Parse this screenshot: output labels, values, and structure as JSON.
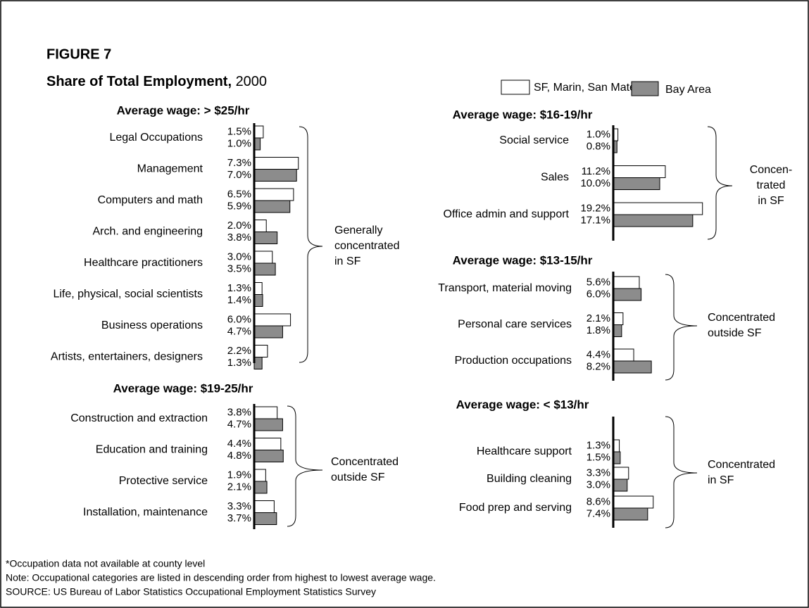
{
  "figure_label": "FIGURE 7",
  "title": "Share of Total Employment,",
  "title_year": "2000",
  "notes": [
    "*Occupation data not available at county level",
    "Note: Occupational categories are listed in descending order from highest to lowest average wage.",
    "SOURCE: US Bureau of Labor Statistics Occupational Employment Statistics Survey"
  ],
  "chart_data": [
    {
      "type": "bar",
      "orientation": "horizontal",
      "title": "Average wage: > $25/hr",
      "categories": [
        "Legal Occupations",
        "Management",
        "Computers and math",
        "Arch. and engineering",
        "Healthcare practitioners",
        "Life, physical, social scientists",
        "Business operations",
        "Artists, entertainers, designers"
      ],
      "series": [
        {
          "name": "SF, Marin, San Mateo*",
          "color": "#ffffff",
          "values": [
            1.5,
            7.3,
            6.5,
            2.0,
            3.0,
            1.3,
            6.0,
            2.2
          ],
          "value_labels": [
            "1.5%",
            "7.3%",
            "6.5%",
            "2.0%",
            "3.0%",
            "1.3%",
            "6.0%",
            "2.2%"
          ]
        },
        {
          "name": "Bay Area",
          "color": "#8c8c8c",
          "values": [
            1.0,
            7.0,
            5.9,
            3.8,
            3.5,
            1.4,
            4.7,
            1.3
          ],
          "value_labels": [
            "1.0%",
            "7.0%",
            "5.9%",
            "3.8%",
            "3.5%",
            "1.4%",
            "4.7%",
            "1.3%"
          ]
        }
      ],
      "xlim": [
        0,
        10
      ],
      "annotation": [
        "Generally",
        "concentrated",
        "in SF"
      ]
    },
    {
      "type": "bar",
      "orientation": "horizontal",
      "title": "Average wage: $19-25/hr",
      "categories": [
        "Construction and extraction",
        "Education and training",
        "Protective service",
        "Installation, maintenance"
      ],
      "series": [
        {
          "name": "SF, Marin, San Mateo*",
          "color": "#ffffff",
          "values": [
            3.8,
            4.4,
            1.9,
            3.3
          ],
          "value_labels": [
            "3.8%",
            "4.4%",
            "1.9%",
            "3.3%"
          ]
        },
        {
          "name": "Bay Area",
          "color": "#8c8c8c",
          "values": [
            4.7,
            4.8,
            2.1,
            3.7
          ],
          "value_labels": [
            "4.7%",
            "4.8%",
            "2.1%",
            "3.7%"
          ]
        }
      ],
      "xlim": [
        0,
        10
      ],
      "annotation": [
        "Concentrated",
        "outside SF"
      ]
    },
    {
      "type": "bar",
      "orientation": "horizontal",
      "title": "Average wage: $16-19/hr",
      "categories": [
        "Social service",
        "Sales",
        "Office admin and support"
      ],
      "series": [
        {
          "name": "SF, Marin, San Mateo*",
          "color": "#ffffff",
          "values": [
            1.0,
            11.2,
            19.2
          ],
          "value_labels": [
            "1.0%",
            "11.2%",
            "19.2%"
          ]
        },
        {
          "name": "Bay Area",
          "color": "#8c8c8c",
          "values": [
            0.8,
            10.0,
            17.1
          ],
          "value_labels": [
            "0.8%",
            "10.0%",
            "17.1%"
          ]
        }
      ],
      "xlim": [
        0,
        20
      ],
      "annotation": [
        "Concen-",
        "trated",
        "in SF"
      ]
    },
    {
      "type": "bar",
      "orientation": "horizontal",
      "title": "Average wage: $13-15/hr",
      "categories": [
        "Transport, material moving",
        "Personal care services",
        "Production occupations"
      ],
      "series": [
        {
          "name": "SF, Marin, San Mateo*",
          "color": "#ffffff",
          "values": [
            5.6,
            2.1,
            4.4
          ],
          "value_labels": [
            "5.6%",
            "2.1%",
            "4.4%"
          ]
        },
        {
          "name": "Bay Area",
          "color": "#8c8c8c",
          "values": [
            6.0,
            1.8,
            8.2
          ],
          "value_labels": [
            "6.0%",
            "1.8%",
            "8.2%"
          ]
        }
      ],
      "xlim": [
        0,
        20
      ],
      "annotation": [
        "Concentrated",
        "outside SF"
      ]
    },
    {
      "type": "bar",
      "orientation": "horizontal",
      "title": "Average wage: < $13/hr",
      "categories": [
        "Healthcare support",
        "Building cleaning",
        "Food prep and serving"
      ],
      "series": [
        {
          "name": "SF, Marin, San Mateo*",
          "color": "#ffffff",
          "values": [
            1.3,
            3.3,
            8.6
          ],
          "value_labels": [
            "1.3%",
            "3.3%",
            "8.6%"
          ]
        },
        {
          "name": "Bay Area",
          "color": "#8c8c8c",
          "values": [
            1.5,
            3.0,
            7.4
          ],
          "value_labels": [
            "1.5%",
            "3.0%",
            "7.4%"
          ]
        }
      ],
      "xlim": [
        0,
        20
      ],
      "annotation": [
        "Concentrated",
        "in SF"
      ]
    }
  ]
}
